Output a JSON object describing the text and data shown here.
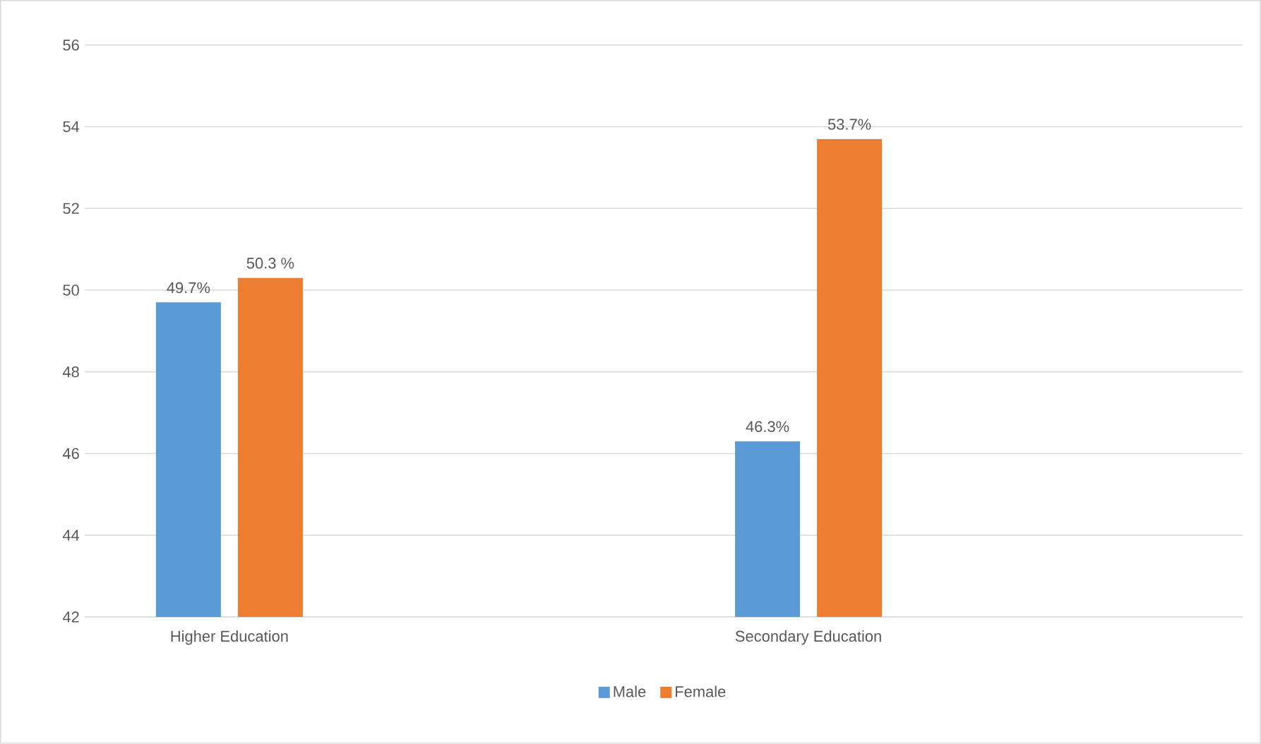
{
  "chart_data": {
    "type": "bar",
    "categories": [
      "Higher Education",
      "Secondary Education"
    ],
    "series": [
      {
        "name": "Male",
        "color": "#5b9bd5",
        "values": [
          49.7,
          46.3
        ],
        "value_labels": [
          "49.7%",
          "46.3%"
        ]
      },
      {
        "name": "Female",
        "color": "#ed7d31",
        "values": [
          50.3,
          53.7
        ],
        "value_labels": [
          "50.3 %",
          "53.7%"
        ]
      }
    ],
    "ylim": [
      42,
      56
    ],
    "yticks": [
      42,
      44,
      46,
      48,
      50,
      52,
      54,
      56
    ],
    "grid": "y",
    "legend": "bottom"
  }
}
